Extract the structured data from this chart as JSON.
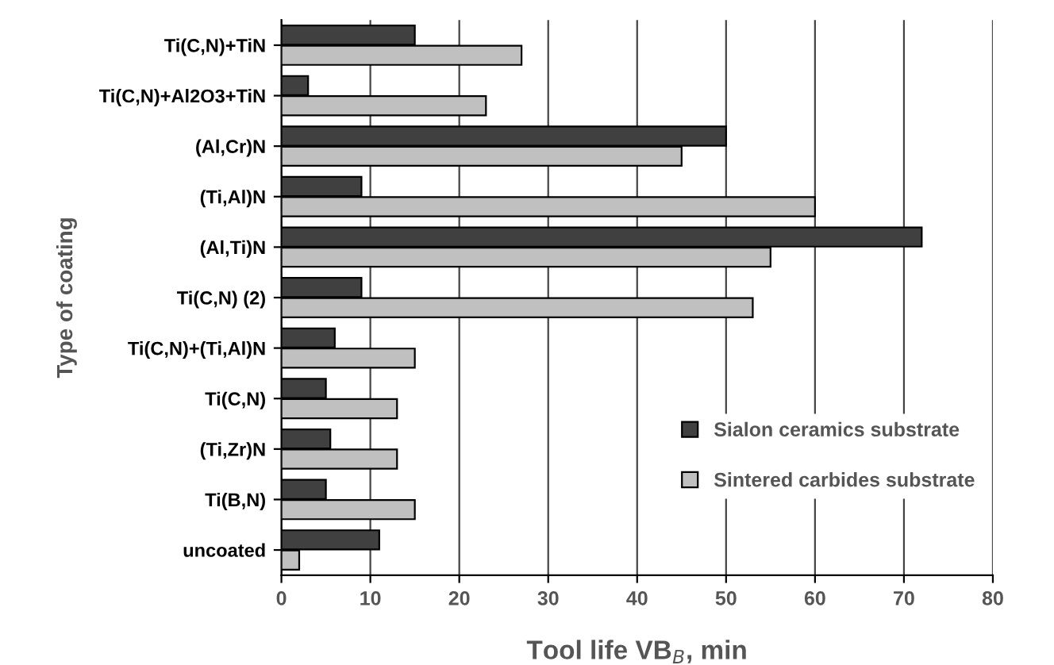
{
  "chart_data": {
    "type": "bar",
    "orientation": "horizontal",
    "xlabel": "Tool life VB$_{B}$, min",
    "ylabel": "Type of coating",
    "categories": [
      "Ti(C,N)+TiN",
      "Ti(C,N)+Al2O3+TiN",
      "(Al,Cr)N",
      "(Ti,Al)N",
      "(Al,Ti)N",
      "Ti(C,N) (2)",
      "Ti(C,N)+(Ti,Al)N",
      "Ti(C,N)",
      "(Ti,Zr)N",
      "Ti(B,N)",
      "uncoated"
    ],
    "series": [
      {
        "name": "Sialon ceramics substrate",
        "color": "#404040",
        "values": [
          15,
          3,
          50,
          9,
          72,
          9,
          6,
          5,
          5.5,
          5,
          11
        ]
      },
      {
        "name": "Sintered carbides substrate",
        "color": "#c0c0c0",
        "values": [
          27,
          23,
          45,
          60,
          55,
          53,
          15,
          13,
          13,
          15,
          2
        ]
      }
    ],
    "xlim": [
      0,
      80
    ],
    "xticks": [
      0,
      10,
      20,
      30,
      40,
      50,
      60,
      70,
      80
    ],
    "grid": "x",
    "legend": "bottom right"
  }
}
